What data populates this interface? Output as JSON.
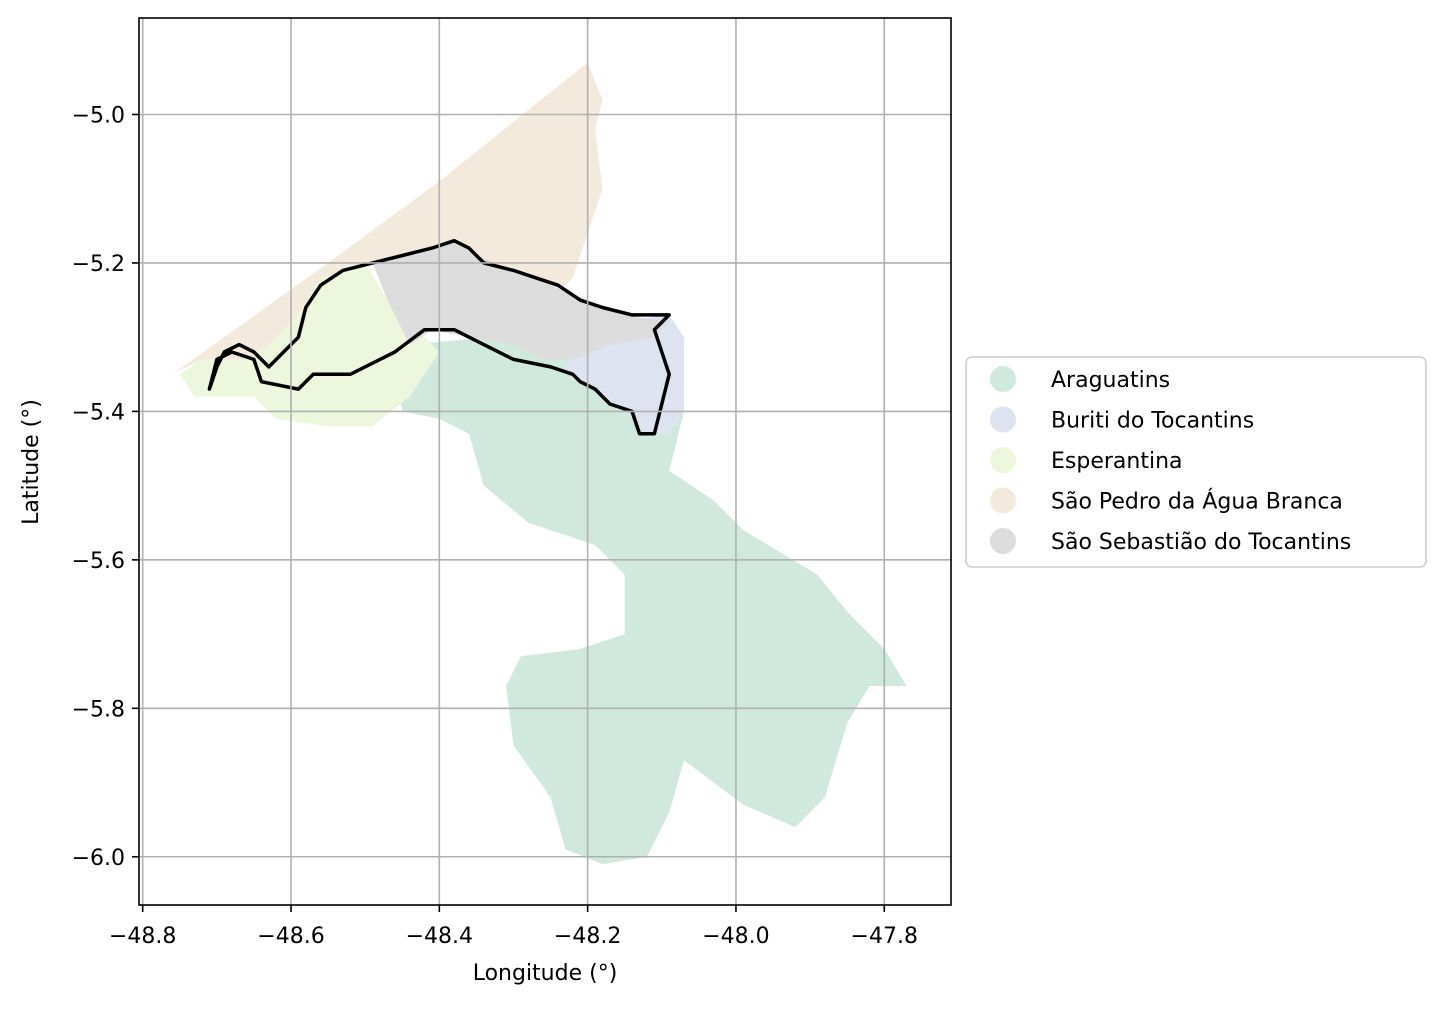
{
  "chart_data": {
    "type": "map",
    "xlabel": "Longitude (°)",
    "ylabel": "Latitude (°)",
    "xlim": [
      -48.805,
      -47.71
    ],
    "ylim": [
      -6.065,
      -4.87
    ],
    "xticks": [
      -48.8,
      -48.6,
      -48.4,
      -48.2,
      -48.0,
      -47.8
    ],
    "yticks": [
      -5.0,
      -5.2,
      -5.4,
      -5.6,
      -5.8,
      -6.0
    ],
    "xtick_labels": [
      "−48.8",
      "−48.6",
      "−48.4",
      "−48.2",
      "−48.0",
      "−47.8"
    ],
    "ytick_labels": [
      "−5.0",
      "−5.2",
      "−5.4",
      "−5.6",
      "−5.8",
      "−6.0"
    ],
    "grid": true,
    "legend_position": "right, outside plot",
    "regions": [
      {
        "name": "Araguatins",
        "color": "#cfeadd",
        "polygon": [
          [
            -48.44,
            -5.31
          ],
          [
            -48.33,
            -5.3
          ],
          [
            -48.2,
            -5.33
          ],
          [
            -48.13,
            -5.38
          ],
          [
            -48.07,
            -5.4
          ],
          [
            -48.09,
            -5.48
          ],
          [
            -48.03,
            -5.52
          ],
          [
            -47.99,
            -5.56
          ],
          [
            -47.89,
            -5.62
          ],
          [
            -47.85,
            -5.67
          ],
          [
            -47.8,
            -5.72
          ],
          [
            -47.77,
            -5.77
          ],
          [
            -47.82,
            -5.77
          ],
          [
            -47.85,
            -5.82
          ],
          [
            -47.88,
            -5.92
          ],
          [
            -47.92,
            -5.96
          ],
          [
            -47.99,
            -5.93
          ],
          [
            -48.07,
            -5.87
          ],
          [
            -48.09,
            -5.94
          ],
          [
            -48.12,
            -6.0
          ],
          [
            -48.18,
            -6.01
          ],
          [
            -48.23,
            -5.99
          ],
          [
            -48.25,
            -5.92
          ],
          [
            -48.3,
            -5.85
          ],
          [
            -48.31,
            -5.77
          ],
          [
            -48.29,
            -5.73
          ],
          [
            -48.21,
            -5.72
          ],
          [
            -48.15,
            -5.7
          ],
          [
            -48.15,
            -5.62
          ],
          [
            -48.19,
            -5.58
          ],
          [
            -48.28,
            -5.55
          ],
          [
            -48.34,
            -5.5
          ],
          [
            -48.36,
            -5.43
          ],
          [
            -48.4,
            -5.41
          ],
          [
            -48.45,
            -5.4
          ],
          [
            -48.46,
            -5.34
          ]
        ]
      },
      {
        "name": "Buriti do Tocantins",
        "color": "#dee3f2",
        "polygon": [
          [
            -48.22,
            -5.32
          ],
          [
            -48.16,
            -5.28
          ],
          [
            -48.09,
            -5.27
          ],
          [
            -48.07,
            -5.3
          ],
          [
            -48.07,
            -5.37
          ],
          [
            -48.07,
            -5.4
          ],
          [
            -48.09,
            -5.43
          ],
          [
            -48.12,
            -5.43
          ],
          [
            -48.16,
            -5.39
          ],
          [
            -48.21,
            -5.36
          ],
          [
            -48.23,
            -5.34
          ]
        ]
      },
      {
        "name": "Esperantina",
        "color": "#ecf7dc",
        "polygon": [
          [
            -48.5,
            -5.2
          ],
          [
            -48.56,
            -5.22
          ],
          [
            -48.59,
            -5.27
          ],
          [
            -48.63,
            -5.31
          ],
          [
            -48.66,
            -5.33
          ],
          [
            -48.72,
            -5.33
          ],
          [
            -48.75,
            -5.35
          ],
          [
            -48.73,
            -5.38
          ],
          [
            -48.65,
            -5.38
          ],
          [
            -48.62,
            -5.41
          ],
          [
            -48.55,
            -5.42
          ],
          [
            -48.49,
            -5.42
          ],
          [
            -48.44,
            -5.38
          ],
          [
            -48.4,
            -5.32
          ],
          [
            -48.42,
            -5.3
          ],
          [
            -48.47,
            -5.25
          ]
        ]
      },
      {
        "name": "São Pedro da Água Branca",
        "color": "#f4eadb",
        "polygon": [
          [
            -48.76,
            -5.35
          ],
          [
            -48.55,
            -5.2
          ],
          [
            -48.4,
            -5.09
          ],
          [
            -48.2,
            -4.93
          ],
          [
            -48.18,
            -4.98
          ],
          [
            -48.19,
            -5.02
          ],
          [
            -48.18,
            -5.1
          ],
          [
            -48.2,
            -5.16
          ],
          [
            -48.22,
            -5.22
          ],
          [
            -48.25,
            -5.25
          ],
          [
            -48.3,
            -5.24
          ],
          [
            -48.36,
            -5.2
          ],
          [
            -48.44,
            -5.2
          ],
          [
            -48.5,
            -5.2
          ],
          [
            -48.56,
            -5.22
          ],
          [
            -48.59,
            -5.27
          ],
          [
            -48.63,
            -5.31
          ],
          [
            -48.66,
            -5.33
          ],
          [
            -48.72,
            -5.33
          ]
        ]
      },
      {
        "name": "São Sebastião do Tocantins",
        "color": "#dcdcdc",
        "polygon": [
          [
            -48.49,
            -5.2
          ],
          [
            -48.45,
            -5.19
          ],
          [
            -48.38,
            -5.17
          ],
          [
            -48.35,
            -5.19
          ],
          [
            -48.3,
            -5.21
          ],
          [
            -48.25,
            -5.23
          ],
          [
            -48.2,
            -5.25
          ],
          [
            -48.15,
            -5.27
          ],
          [
            -48.09,
            -5.28
          ],
          [
            -48.11,
            -5.3
          ],
          [
            -48.17,
            -5.31
          ],
          [
            -48.22,
            -5.33
          ],
          [
            -48.26,
            -5.33
          ],
          [
            -48.3,
            -5.31
          ],
          [
            -48.36,
            -5.3
          ],
          [
            -48.41,
            -5.29
          ],
          [
            -48.44,
            -5.31
          ],
          [
            -48.47,
            -5.25
          ]
        ]
      }
    ],
    "outline": {
      "color": "#000000",
      "polygon": [
        [
          -48.71,
          -5.37
        ],
        [
          -48.7,
          -5.34
        ],
        [
          -48.69,
          -5.32
        ],
        [
          -48.67,
          -5.31
        ],
        [
          -48.65,
          -5.32
        ],
        [
          -48.63,
          -5.34
        ],
        [
          -48.61,
          -5.32
        ],
        [
          -48.59,
          -5.3
        ],
        [
          -48.58,
          -5.26
        ],
        [
          -48.56,
          -5.23
        ],
        [
          -48.53,
          -5.21
        ],
        [
          -48.49,
          -5.2
        ],
        [
          -48.45,
          -5.19
        ],
        [
          -48.41,
          -5.18
        ],
        [
          -48.38,
          -5.17
        ],
        [
          -48.36,
          -5.18
        ],
        [
          -48.34,
          -5.2
        ],
        [
          -48.3,
          -5.21
        ],
        [
          -48.27,
          -5.22
        ],
        [
          -48.24,
          -5.23
        ],
        [
          -48.21,
          -5.25
        ],
        [
          -48.18,
          -5.26
        ],
        [
          -48.14,
          -5.27
        ],
        [
          -48.11,
          -5.27
        ],
        [
          -48.09,
          -5.27
        ],
        [
          -48.11,
          -5.29
        ],
        [
          -48.1,
          -5.32
        ],
        [
          -48.09,
          -5.35
        ],
        [
          -48.1,
          -5.39
        ],
        [
          -48.11,
          -5.43
        ],
        [
          -48.13,
          -5.43
        ],
        [
          -48.14,
          -5.4
        ],
        [
          -48.17,
          -5.39
        ],
        [
          -48.19,
          -5.37
        ],
        [
          -48.21,
          -5.36
        ],
        [
          -48.22,
          -5.35
        ],
        [
          -48.25,
          -5.34
        ],
        [
          -48.3,
          -5.33
        ],
        [
          -48.34,
          -5.31
        ],
        [
          -48.38,
          -5.29
        ],
        [
          -48.42,
          -5.29
        ],
        [
          -48.46,
          -5.32
        ],
        [
          -48.52,
          -5.35
        ],
        [
          -48.57,
          -5.35
        ],
        [
          -48.59,
          -5.37
        ],
        [
          -48.64,
          -5.36
        ],
        [
          -48.65,
          -5.33
        ],
        [
          -48.68,
          -5.32
        ],
        [
          -48.7,
          -5.33
        ]
      ]
    }
  }
}
